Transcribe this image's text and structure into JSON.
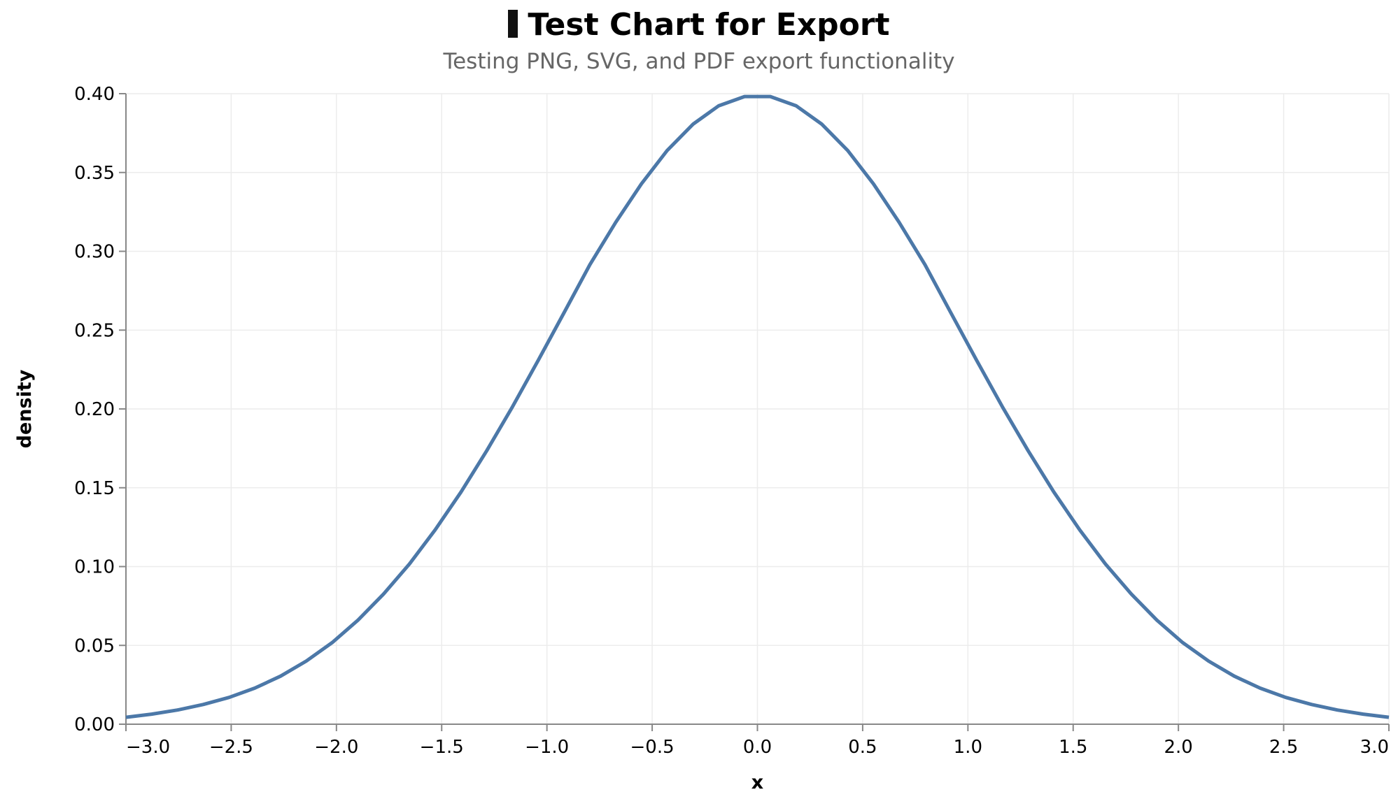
{
  "chart_data": {
    "type": "line",
    "title": "Test Chart for Export",
    "title_icon": "noglyph-box-icon",
    "subtitle": "Testing PNG, SVG, and PDF export functionality",
    "xlabel": "x",
    "ylabel": "density",
    "xlim": [
      -3.0,
      3.0
    ],
    "ylim": [
      0.0,
      0.4
    ],
    "x_ticks": [
      "−3.0",
      "−2.5",
      "−2.0",
      "−1.5",
      "−1.0",
      "−0.5",
      "0.0",
      "0.5",
      "1.0",
      "1.5",
      "2.0",
      "2.5",
      "3.0"
    ],
    "y_ticks": [
      "0.00",
      "0.05",
      "0.10",
      "0.15",
      "0.20",
      "0.25",
      "0.30",
      "0.35",
      "0.40"
    ],
    "grid": true,
    "line_color": "#4c78a8",
    "series": [
      {
        "x": [
          -3.0,
          -2.878,
          -2.755,
          -2.633,
          -2.51,
          -2.388,
          -2.265,
          -2.143,
          -2.02,
          -1.898,
          -1.776,
          -1.653,
          -1.531,
          -1.408,
          -1.286,
          -1.163,
          -1.041,
          -0.918,
          -0.796,
          -0.673,
          -0.551,
          -0.429,
          -0.306,
          -0.184,
          -0.061,
          0.061,
          0.184,
          0.306,
          0.429,
          0.551,
          0.673,
          0.796,
          0.918,
          1.041,
          1.163,
          1.286,
          1.408,
          1.531,
          1.653,
          1.776,
          1.898,
          2.02,
          2.143,
          2.265,
          2.388,
          2.51,
          2.633,
          2.755,
          2.878,
          3.0
        ],
        "values": [
          0.0044,
          0.0064,
          0.009,
          0.0125,
          0.017,
          0.0229,
          0.0305,
          0.0401,
          0.0518,
          0.066,
          0.0826,
          0.1017,
          0.1233,
          0.1473,
          0.1735,
          0.2015,
          0.2309,
          0.2612,
          0.2915,
          0.3184,
          0.3428,
          0.3639,
          0.3806,
          0.3923,
          0.3982,
          0.3982,
          0.3923,
          0.3806,
          0.3639,
          0.3428,
          0.3184,
          0.2915,
          0.2612,
          0.2309,
          0.2015,
          0.1735,
          0.1473,
          0.1233,
          0.1017,
          0.0826,
          0.066,
          0.0518,
          0.0401,
          0.0305,
          0.0229,
          0.017,
          0.0125,
          0.009,
          0.0064,
          0.0044
        ]
      }
    ]
  }
}
